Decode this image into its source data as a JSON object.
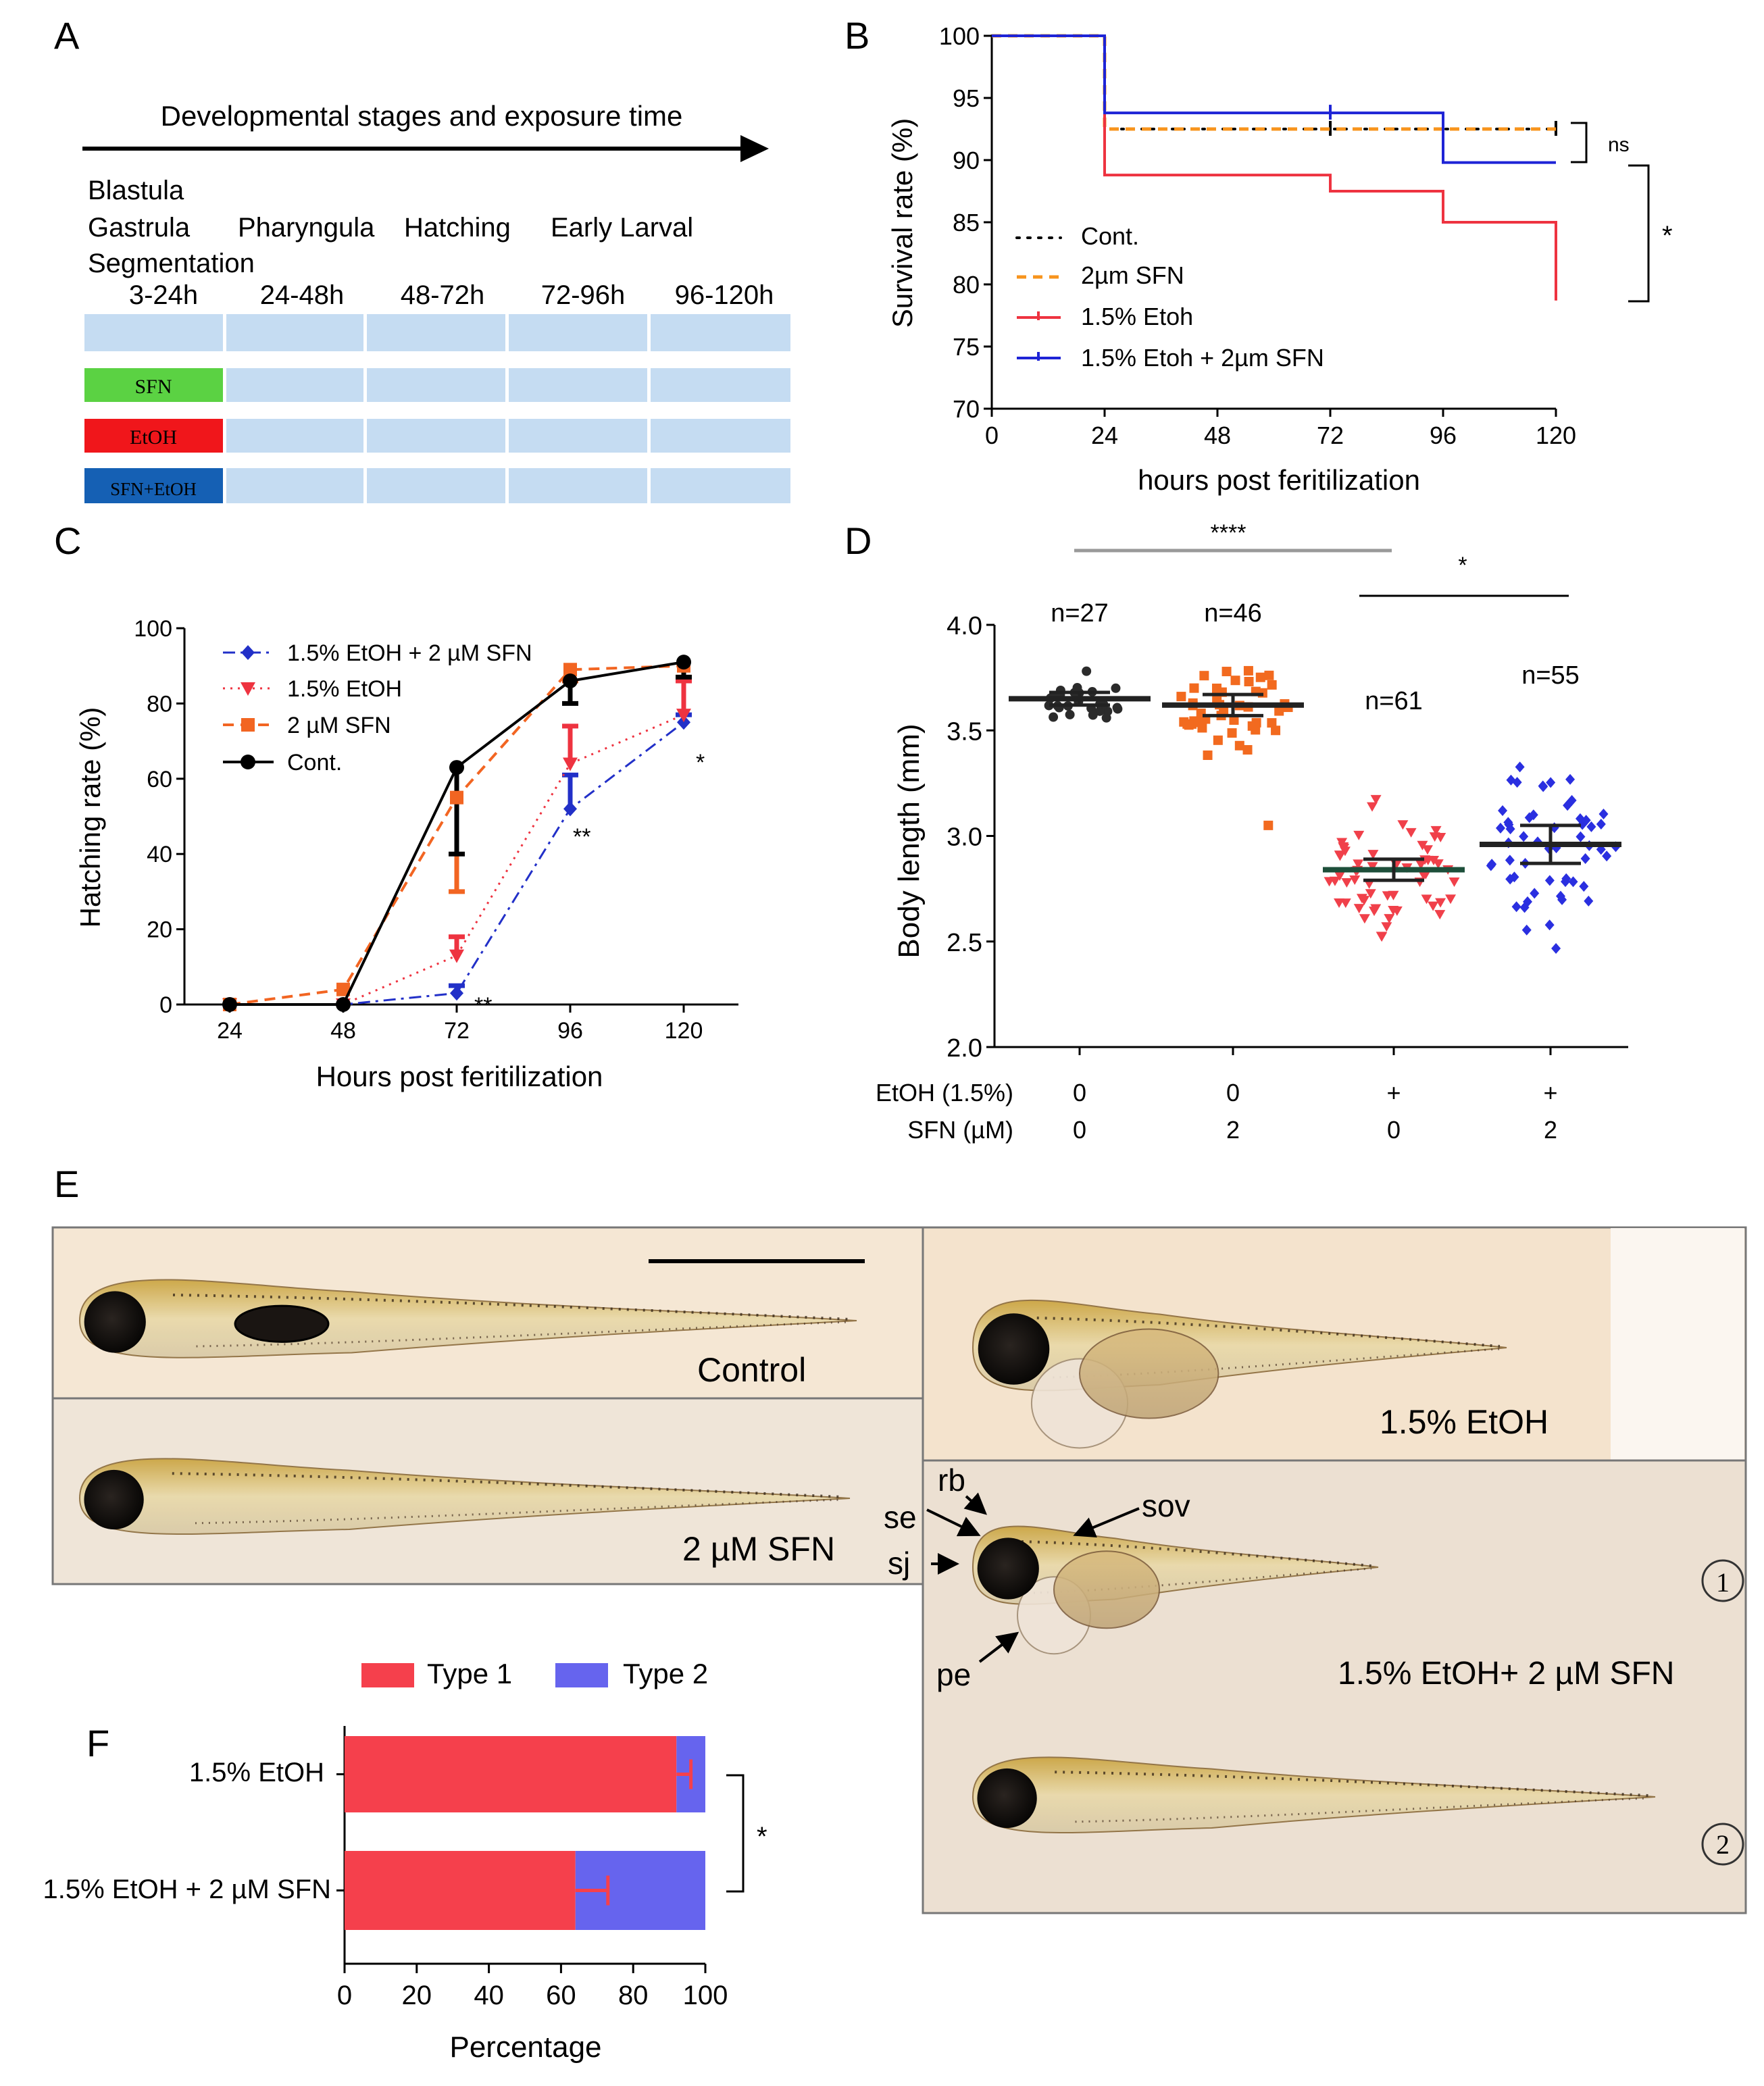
{
  "panel_labels": [
    "A",
    "B",
    "C",
    "D",
    "E",
    "F"
  ],
  "colors": {
    "cont": "#000000",
    "sfn": "#f26522",
    "etoh": "#ee3340",
    "combo": "#1e24d6",
    "combo_c": "#2230c8",
    "cell": "#c5dcf2",
    "sfn_bar": "#5bd243",
    "etoh_bar": "#f0161b",
    "combo_bar": "#1560b4",
    "type1": "#f5404c",
    "type2": "#6664ee",
    "green_mean": "#1d4f3a"
  },
  "panelA": {
    "arrow_label": "Developmental stages and exposure time",
    "stage_text": [
      "Blastula",
      "Gastrula",
      "Segmentation",
      "Pharyngula",
      "Hatching",
      "Early Larval"
    ],
    "time_labels": [
      "3-24h",
      "24-48h",
      "48-72h",
      "72-96h",
      "96-120h"
    ],
    "rows": [
      "SFN",
      "EtOH",
      "SFN+EtOH"
    ]
  },
  "chart_data": [
    {
      "panel": "B",
      "type": "line",
      "subtype": "kaplan-meier",
      "xlabel": "hours post feritilization",
      "ylabel": "Survival rate (%)",
      "xlim": [
        0,
        120
      ],
      "ylim": [
        70,
        100
      ],
      "xticks": [
        0,
        24,
        48,
        72,
        96,
        120
      ],
      "yticks": [
        70,
        75,
        80,
        85,
        90,
        95,
        100
      ],
      "series": [
        {
          "name": "Cont.",
          "steps": [
            [
              0,
              100
            ],
            [
              24,
              100
            ],
            [
              24,
              92.5
            ],
            [
              120,
              92.5
            ]
          ],
          "censor": [
            [
              72,
              92.5
            ],
            [
              120,
              92.5
            ]
          ]
        },
        {
          "name": "2µm SFN",
          "steps": [
            [
              0,
              100
            ],
            [
              24,
              100
            ],
            [
              24,
              92.5
            ],
            [
              120,
              92.5
            ]
          ],
          "censor": []
        },
        {
          "name": "1.5% Etoh",
          "steps": [
            [
              0,
              100
            ],
            [
              24,
              100
            ],
            [
              24,
              88.8
            ],
            [
              72,
              88.8
            ],
            [
              72,
              87.5
            ],
            [
              96,
              87.5
            ],
            [
              96,
              85
            ],
            [
              120,
              85
            ],
            [
              120,
              78.7
            ]
          ],
          "censor": []
        },
        {
          "name": "1.5% Etoh + 2µm SFN",
          "steps": [
            [
              0,
              100
            ],
            [
              24,
              100
            ],
            [
              24,
              93.8
            ],
            [
              96,
              93.8
            ],
            [
              96,
              89.8
            ],
            [
              120,
              89.8
            ]
          ],
          "censor": [
            [
              72,
              93.8
            ]
          ]
        }
      ],
      "annotations": [
        "ns",
        "*"
      ]
    },
    {
      "panel": "C",
      "type": "line",
      "xlabel": "Hours post feritilization",
      "ylabel": "Hatching rate (%)",
      "categories": [
        24,
        48,
        72,
        96,
        120
      ],
      "ylim": [
        0,
        100
      ],
      "yticks": [
        0,
        20,
        40,
        60,
        80,
        100
      ],
      "series": [
        {
          "name": "1.5% EtOH + 2 µM SFN",
          "values": [
            0,
            0,
            3,
            52,
            75
          ],
          "err": [
            0,
            0,
            2,
            9,
            2
          ]
        },
        {
          "name": "1.5% EtOH",
          "values": [
            0,
            0,
            13,
            64,
            77
          ],
          "err": [
            0,
            0,
            5,
            10,
            9
          ]
        },
        {
          "name": "2 µM SFN",
          "values": [
            0,
            4,
            55,
            89,
            90
          ],
          "err": [
            0,
            0,
            25,
            3,
            3
          ]
        },
        {
          "name": "Cont.",
          "values": [
            0,
            0,
            63,
            86,
            91
          ],
          "err": [
            0,
            0,
            23,
            6,
            4
          ]
        }
      ],
      "annotations": [
        "**",
        "**",
        "*"
      ]
    },
    {
      "panel": "D",
      "type": "scatter",
      "ylabel": "Body length (mm)",
      "ylim": [
        2.0,
        4.0
      ],
      "yticks": [
        2.0,
        2.5,
        3.0,
        3.5,
        4.0
      ],
      "row_labels": [
        "EtOH (1.5%)",
        "SFN (µM)"
      ],
      "groups": [
        {
          "etoh": "0",
          "sfn": "0",
          "n_label": "n=27",
          "mean": 3.65,
          "sem": 0.03
        },
        {
          "etoh": "0",
          "sfn": "2",
          "n_label": "n=46",
          "mean": 3.62,
          "sem": 0.05
        },
        {
          "etoh": "+",
          "sfn": "0",
          "n_label": "n=61",
          "mean": 2.84,
          "sem": 0.05
        },
        {
          "etoh": "+",
          "sfn": "2",
          "n_label": "n=55",
          "mean": 2.96,
          "sem": 0.09
        }
      ],
      "significance": [
        "****",
        "*"
      ]
    },
    {
      "panel": "F",
      "type": "bar",
      "orientation": "horizontal",
      "stacked": true,
      "categories": [
        "1.5% EtOH",
        "1.5% EtOH + 2 µM SFN"
      ],
      "series": [
        {
          "name": "Type 1",
          "values": [
            92,
            64
          ],
          "err": [
            4,
            9
          ]
        },
        {
          "name": "Type 2",
          "values": [
            8,
            36
          ]
        }
      ],
      "xlabel": "Percentage",
      "xlim": [
        0,
        100
      ],
      "xticks": [
        0,
        20,
        40,
        60,
        80,
        100
      ],
      "significance": "*"
    }
  ],
  "panelE": {
    "labels": [
      "Control",
      "2 µM SFN",
      "1.5% EtOH",
      "1.5% EtOH+ 2 µM SFN"
    ],
    "arrows": [
      "rb",
      "se",
      "sj",
      "sov",
      "pe"
    ],
    "subtypes": [
      "①",
      "②"
    ]
  }
}
